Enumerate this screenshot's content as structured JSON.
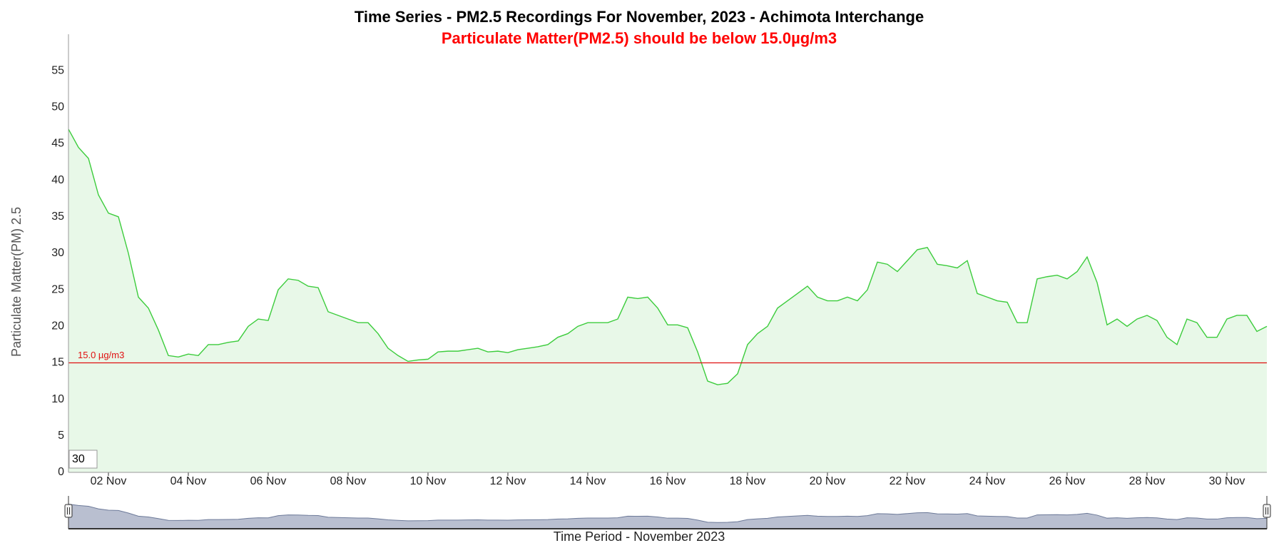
{
  "chart_data": {
    "type": "area",
    "title": "Time Series - PM2.5 Recordings For November, 2023 - Achimota Interchange",
    "subtitle": "Particulate Matter(PM2.5) should be below 15.0µg/m3",
    "y_label": "Particulate Matter(PM) 2.5",
    "x_label": "Time Period - November 2023",
    "range_input": "30",
    "x": [
      1,
      1.25,
      1.5,
      1.75,
      2,
      2.25,
      2.5,
      2.75,
      3,
      3.25,
      3.5,
      3.75,
      4,
      4.25,
      4.5,
      4.75,
      5,
      5.25,
      5.5,
      5.75,
      6,
      6.25,
      6.5,
      6.75,
      7,
      7.25,
      7.5,
      7.75,
      8,
      8.25,
      8.5,
      8.75,
      9,
      9.25,
      9.5,
      9.75,
      10,
      10.25,
      10.5,
      10.75,
      11,
      11.25,
      11.5,
      11.75,
      12,
      12.25,
      12.5,
      12.75,
      13,
      13.25,
      13.5,
      13.75,
      14,
      14.25,
      14.5,
      14.75,
      15,
      15.25,
      15.5,
      15.75,
      16,
      16.25,
      16.5,
      16.75,
      17,
      17.25,
      17.5,
      17.75,
      18,
      18.25,
      18.5,
      18.75,
      19,
      19.25,
      19.5,
      19.75,
      20,
      20.25,
      20.5,
      20.75,
      21,
      21.25,
      21.5,
      21.75,
      22,
      22.25,
      22.5,
      22.75,
      23,
      23.25,
      23.5,
      23.75,
      24,
      24.25,
      24.5,
      24.75,
      25,
      25.25,
      25.5,
      25.75,
      26,
      26.25,
      26.5,
      26.75,
      27,
      27.25,
      27.5,
      27.75,
      28,
      28.25,
      28.5,
      28.75,
      29,
      29.25,
      29.5,
      29.75,
      30,
      30.25,
      30.5,
      30.75,
      31
    ],
    "series": [
      {
        "name": "PM2.5",
        "color": "#3ccc3c",
        "fill": "#e8f8e8",
        "values": [
          47,
          44.5,
          43,
          38,
          35.5,
          35,
          30,
          24,
          22.5,
          19.5,
          16,
          15.8,
          16.2,
          16,
          17.5,
          17.5,
          17.8,
          18,
          20,
          21,
          20.8,
          25,
          26.5,
          26.3,
          25.5,
          25.3,
          22,
          21.5,
          21,
          20.5,
          20.5,
          19,
          17,
          16,
          15.2,
          15.4,
          15.5,
          16.5,
          16.6,
          16.6,
          16.8,
          17,
          16.5,
          16.6,
          16.4,
          16.8,
          17,
          17.2,
          17.5,
          18.5,
          19,
          20,
          20.5,
          20.5,
          20.5,
          21,
          24,
          23.8,
          24,
          22.5,
          20.2,
          20.2,
          19.8,
          16.5,
          12.5,
          12,
          12.2,
          13.5,
          17.5,
          19,
          20,
          22.5,
          23.5,
          24.5,
          25.5,
          24,
          23.5,
          23.5,
          24,
          23.5,
          25,
          28.8,
          28.5,
          27.5,
          29,
          30.5,
          30.8,
          28.5,
          28.3,
          28,
          29,
          24.5,
          24,
          23.5,
          23.3,
          20.5,
          20.5,
          26.5,
          26.8,
          27,
          26.5,
          27.5,
          29.5,
          26,
          20.2,
          21,
          20,
          21,
          21.5,
          20.8,
          18.5,
          17.5,
          21,
          20.5,
          18.5,
          18.5,
          21,
          21.5,
          21.5,
          19.3,
          20
        ]
      }
    ],
    "threshold": {
      "value": 15,
      "label": "15.0 µg/m3",
      "color": "#e01010"
    },
    "xlim": [
      1,
      31
    ],
    "xticks": [
      {
        "value": 2,
        "label": "02 Nov"
      },
      {
        "value": 4,
        "label": "04 Nov"
      },
      {
        "value": 6,
        "label": "06 Nov"
      },
      {
        "value": 8,
        "label": "08 Nov"
      },
      {
        "value": 10,
        "label": "10 Nov"
      },
      {
        "value": 12,
        "label": "12 Nov"
      },
      {
        "value": 14,
        "label": "14 Nov"
      },
      {
        "value": 16,
        "label": "16 Nov"
      },
      {
        "value": 18,
        "label": "18 Nov"
      },
      {
        "value": 20,
        "label": "20 Nov"
      },
      {
        "value": 22,
        "label": "22 Nov"
      },
      {
        "value": 24,
        "label": "24 Nov"
      },
      {
        "value": 26,
        "label": "26 Nov"
      },
      {
        "value": 28,
        "label": "28 Nov"
      },
      {
        "value": 30,
        "label": "30 Nov"
      }
    ],
    "ylim": [
      0,
      60
    ],
    "yticks": [
      0,
      5,
      10,
      15,
      20,
      25,
      30,
      35,
      40,
      45,
      50,
      55
    ],
    "grid": false
  }
}
